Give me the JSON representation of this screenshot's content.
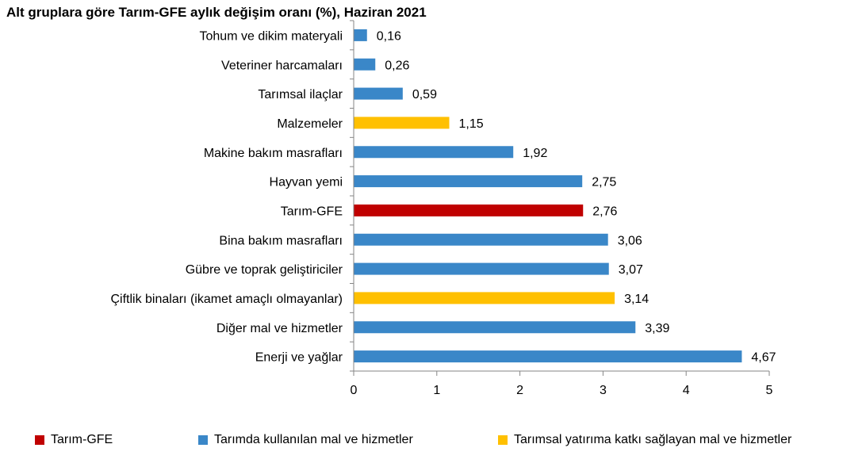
{
  "chart_data": {
    "type": "bar",
    "orientation": "horizontal",
    "title": "Alt gruplara göre Tarım-GFE aylık değişim oranı (%), Haziran 2021",
    "categories": [
      "Tohum ve dikim materyali",
      "Veteriner harcamaları",
      "Tarımsal ilaçlar",
      "Malzemeler",
      "Makine bakım masrafları",
      "Hayvan yemi",
      "Tarım-GFE",
      "Bina bakım masrafları",
      "Gübre ve toprak geliştiriciler",
      "Çiftlik binaları (ikamet amaçlı olmayanlar)",
      "Diğer mal ve hizmetler",
      "Enerji ve yağlar"
    ],
    "values": [
      0.16,
      0.26,
      0.59,
      1.15,
      1.92,
      2.75,
      2.76,
      3.06,
      3.07,
      3.14,
      3.39,
      4.67
    ],
    "value_labels": [
      "0,16",
      "0,26",
      "0,59",
      "1,15",
      "1,92",
      "2,75",
      "2,76",
      "3,06",
      "3,07",
      "3,14",
      "3,39",
      "4,67"
    ],
    "groups": [
      "blue",
      "blue",
      "blue",
      "yellow",
      "blue",
      "blue",
      "red",
      "blue",
      "blue",
      "yellow",
      "blue",
      "blue"
    ],
    "xlim": [
      0,
      5
    ],
    "xticks": [
      0,
      1,
      2,
      3,
      4,
      5
    ],
    "xtick_labels": [
      "0",
      "1",
      "2",
      "3",
      "4",
      "5"
    ],
    "grid": false,
    "legend_position": "bottom",
    "legend": [
      {
        "key": "red",
        "label": "Tarım-GFE",
        "color": "#c00000"
      },
      {
        "key": "blue",
        "label": "Tarımda kullanılan mal ve hizmetler",
        "color": "#3a87c8"
      },
      {
        "key": "yellow",
        "label": "Tarımsal yatırıma katkı sağlayan mal ve hizmetler",
        "color": "#ffc000"
      }
    ]
  }
}
